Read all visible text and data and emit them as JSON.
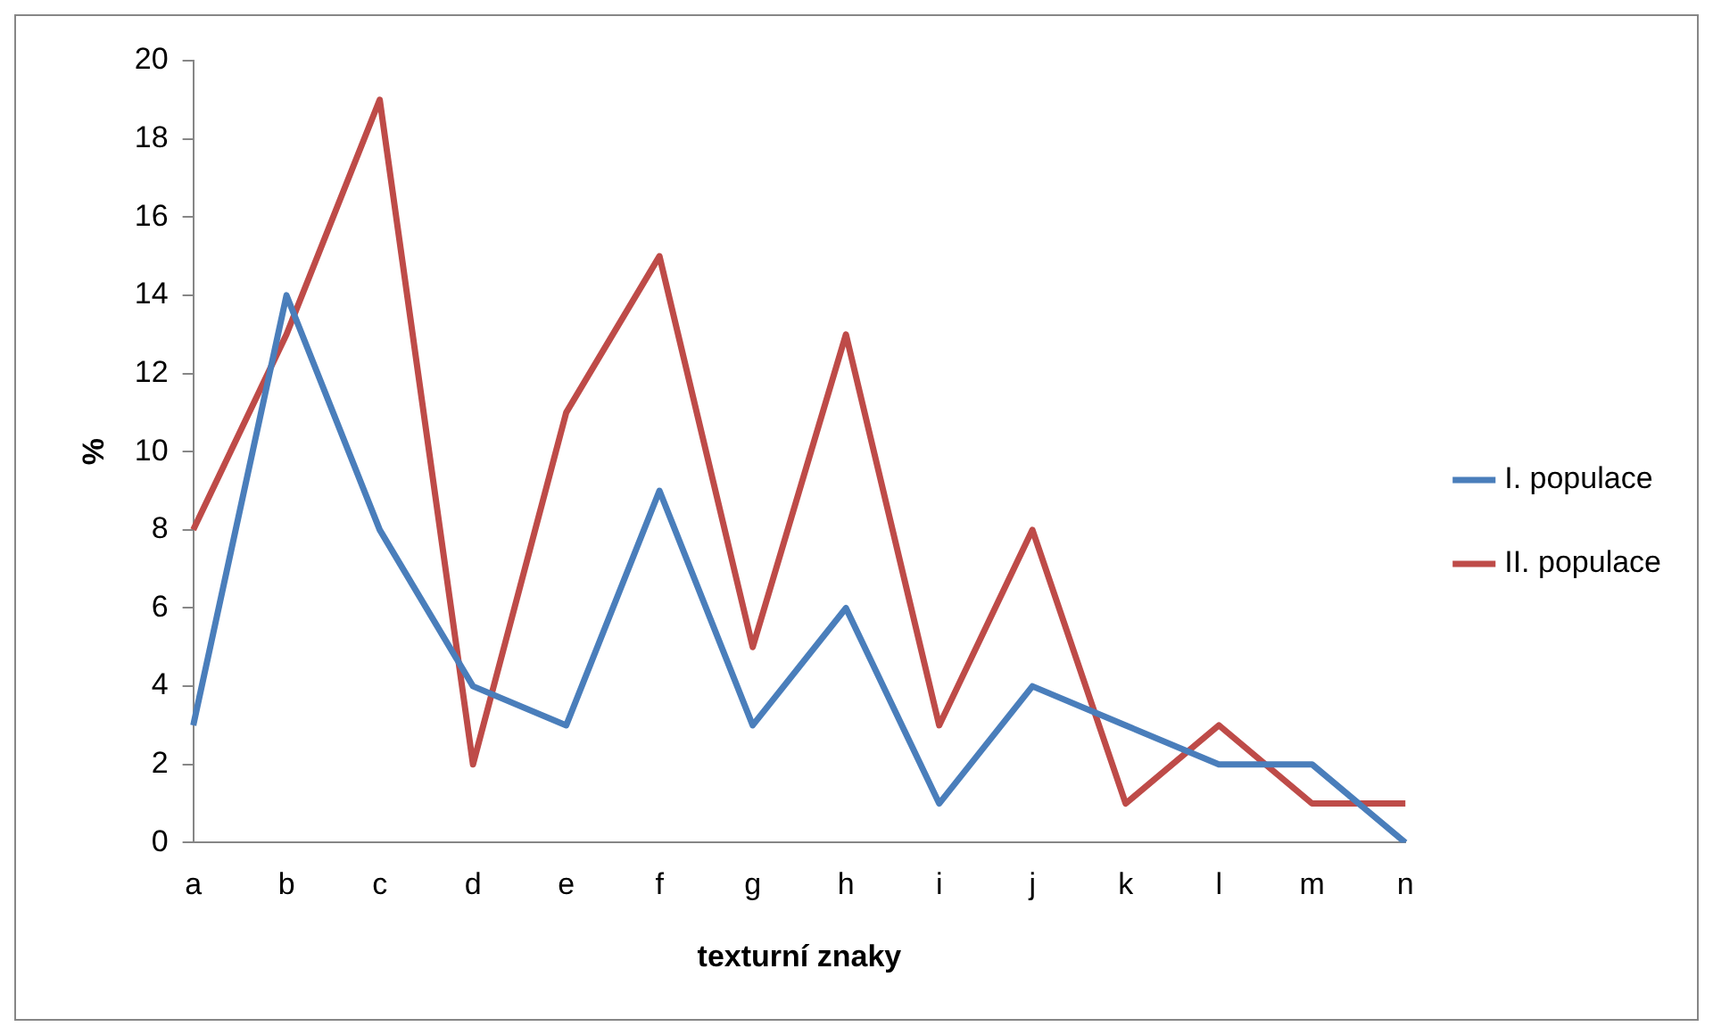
{
  "chart_data": {
    "type": "line",
    "xlabel": "texturní znaky",
    "ylabel": "%",
    "categories": [
      "a",
      "b",
      "c",
      "d",
      "e",
      "f",
      "g",
      "h",
      "i",
      "j",
      "k",
      "l",
      "m",
      "n"
    ],
    "series": [
      {
        "name": "I. populace",
        "color": "#4a7ebb",
        "values": [
          3,
          14,
          8,
          4,
          3,
          9,
          3,
          6,
          1,
          4,
          3,
          2,
          2,
          0
        ]
      },
      {
        "name": "II. populace",
        "color": "#be4b48",
        "values": [
          8,
          13,
          19,
          2,
          11,
          15,
          5,
          13,
          3,
          8,
          1,
          3,
          1,
          1
        ]
      }
    ],
    "ylim": [
      0,
      20
    ],
    "yticks": [
      0,
      2,
      4,
      6,
      8,
      10,
      12,
      14,
      16,
      18,
      20
    ],
    "grid": false,
    "legend": "right",
    "marker": "none",
    "line_style": "solid"
  }
}
